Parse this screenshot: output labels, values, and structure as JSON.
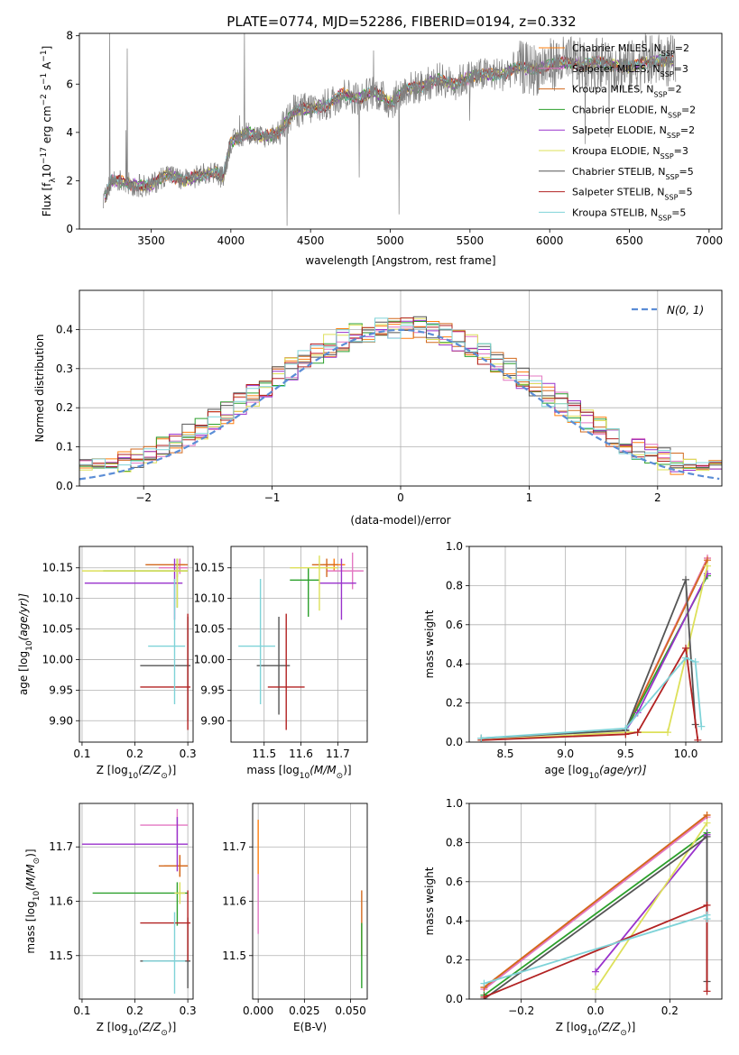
{
  "figure": {
    "title": "PLATE=0774, MJD=52286, FIBERID=0194, z=0.332",
    "legend_labels": [
      "Chabrier MILES, N",
      "Salpeter MILES, N",
      "Kroupa MILES, N",
      "Chabrier ELODIE, N",
      "Salpeter ELODIE, N",
      "Kroupa ELODIE, N",
      "Chabrier STELIB, N",
      "Salpeter STELIB, N",
      "Kroupa STELIB, N"
    ],
    "legend_subscript": "SSP",
    "legend_nssp": [
      "=2",
      "=3",
      "=2",
      "=2",
      "=2",
      "=3",
      "=5",
      "=5",
      "=5"
    ],
    "model_colors": [
      "#ff7f0e",
      "#e377c2",
      "#d2691e",
      "#2ca02c",
      "#9932cc",
      "#dde05a",
      "#555555",
      "#b22222",
      "#7fd3d8"
    ]
  },
  "chart_data": [
    {
      "id": "spectrum",
      "type": "line",
      "title": "PLATE=0774, MJD=52286, FIBERID=0194, z=0.332",
      "xlabel": "wavelength [Angstrom, rest frame]",
      "ylabel": "Flux [f",
      "ylabel_parts": [
        "Flux [f",
        "λ",
        "10",
        "−17",
        " erg cm",
        "−2",
        " s",
        "−1",
        " A",
        "−1",
        "]"
      ],
      "xlim": [
        3050,
        7080
      ],
      "ylim": [
        0,
        8.1
      ],
      "xticks": [
        3500,
        4000,
        4500,
        5000,
        5500,
        6000,
        6500,
        7000
      ],
      "yticks": [
        0,
        2,
        4,
        6,
        8
      ],
      "data_color": "#808080",
      "continuum": {
        "x": [
          3200,
          3250,
          3300,
          3400,
          3500,
          3600,
          3700,
          3800,
          3900,
          3950,
          4000,
          4100,
          4200,
          4300,
          4400,
          4500,
          4600,
          4700,
          4800,
          4900,
          5000,
          5100,
          5200,
          5300,
          5400,
          5500,
          5600,
          5700,
          5800,
          5900,
          6000,
          6100,
          6200,
          6300,
          6400,
          6500,
          6600,
          6700,
          6800
        ],
        "y": [
          1.0,
          2.0,
          2.0,
          1.8,
          1.8,
          2.3,
          2.0,
          2.2,
          2.4,
          2.1,
          3.6,
          4.0,
          3.8,
          4.0,
          4.9,
          5.0,
          5.1,
          5.6,
          5.4,
          5.7,
          5.2,
          5.8,
          5.9,
          6.2,
          6.0,
          6.3,
          6.4,
          6.4,
          6.7,
          6.6,
          6.8,
          6.9,
          6.8,
          6.9,
          6.8,
          6.7,
          6.9,
          7.0,
          6.9
        ]
      }
    },
    {
      "id": "residuals",
      "type": "step",
      "xlabel": "(data-model)/error",
      "ylabel": "Normed distribution",
      "xlim": [
        -2.5,
        2.5
      ],
      "ylim": [
        0,
        0.5
      ],
      "xticks": [
        -2,
        -1,
        0,
        1,
        2
      ],
      "yticks": [
        0.0,
        0.1,
        0.2,
        0.3,
        0.4
      ],
      "grid": true,
      "legend": "N(0, 1)",
      "bin_width": 0.1,
      "gaussian": {
        "mean": 0,
        "sigma": 1,
        "color": "#5b8dd6"
      }
    },
    {
      "id": "age_vs_Z",
      "type": "errorbar",
      "xlabel": "Z [log",
      "xlabel_parts": [
        "Z [log",
        "10",
        "(Z/Z",
        "⊙",
        ")]"
      ],
      "ylabel_parts": [
        "age  [log",
        "10",
        "(age/yr)]"
      ],
      "xlim": [
        0.095,
        0.31
      ],
      "ylim": [
        9.865,
        10.185
      ],
      "xticks": [
        0.1,
        0.2,
        0.3
      ],
      "yticks": [
        9.9,
        9.95,
        10.0,
        10.05,
        10.1,
        10.15
      ],
      "grid": true,
      "points": [
        {
          "x": 0.285,
          "xerr": [
            0.01,
            0.01
          ],
          "y": 10.155,
          "yerr": [
            0.01,
            0.01
          ]
        },
        {
          "x": 0.285,
          "xerr": [
            0.04,
            0.015
          ],
          "y": 10.15,
          "yerr": [
            0.01,
            0.015
          ]
        },
        {
          "x": 0.28,
          "xerr": [
            0.06,
            0.02
          ],
          "y": 10.155,
          "yerr": [
            0.02,
            0.01
          ]
        },
        {
          "x": 0.28,
          "xerr": [
            0.14,
            0.02
          ],
          "y": 10.145,
          "yerr": [
            0.06,
            0.02
          ]
        },
        {
          "x": 0.275,
          "xerr": [
            0.17,
            0.015
          ],
          "y": 10.125,
          "yerr": [
            0.06,
            0.04
          ]
        },
        {
          "x": 0.28,
          "xerr": [
            0.18,
            0.02
          ],
          "y": 10.145,
          "yerr": [
            0.06,
            0.02
          ]
        },
        {
          "x": 0.3,
          "xerr": [
            0.09,
            0.005
          ],
          "y": 9.99,
          "yerr": [
            0.09,
            0.08
          ]
        },
        {
          "x": 0.3,
          "xerr": [
            0.09,
            0.005
          ],
          "y": 9.955,
          "yerr": [
            0.07,
            0.12
          ]
        },
        {
          "x": 0.275,
          "xerr": [
            0.05,
            0.02
          ],
          "y": 10.022,
          "yerr": [
            0.095,
            0.11
          ]
        }
      ]
    },
    {
      "id": "age_vs_mass",
      "type": "errorbar",
      "xlabel_parts": [
        "mass [log",
        "10",
        "(M/M",
        "⊙",
        ")]"
      ],
      "xlim": [
        11.41,
        11.78
      ],
      "ylim": [
        9.865,
        10.185
      ],
      "xticks": [
        11.5,
        11.6,
        11.7
      ],
      "yticks": [
        9.9,
        9.95,
        10.0,
        10.05,
        10.1,
        10.15
      ],
      "grid": true,
      "points": [
        {
          "x": 11.69,
          "xerr": [
            0.03,
            0.03
          ],
          "y": 10.155,
          "yerr": [
            0.01,
            0.01
          ]
        },
        {
          "x": 11.74,
          "xerr": [
            0.07,
            0.03
          ],
          "y": 10.145,
          "yerr": [
            0.03,
            0.03
          ]
        },
        {
          "x": 11.67,
          "xerr": [
            0.04,
            0.03
          ],
          "y": 10.155,
          "yerr": [
            0.02,
            0.01
          ]
        },
        {
          "x": 11.62,
          "xerr": [
            0.05,
            0.03
          ],
          "y": 10.13,
          "yerr": [
            0.06,
            0.02
          ]
        },
        {
          "x": 11.71,
          "xerr": [
            0.06,
            0.04
          ],
          "y": 10.125,
          "yerr": [
            0.06,
            0.04
          ]
        },
        {
          "x": 11.65,
          "xerr": [
            0.08,
            0.05
          ],
          "y": 10.15,
          "yerr": [
            0.07,
            0.02
          ]
        },
        {
          "x": 11.54,
          "xerr": [
            0.06,
            0.03
          ],
          "y": 9.99,
          "yerr": [
            0.08,
            0.08
          ]
        },
        {
          "x": 11.56,
          "xerr": [
            0.05,
            0.05
          ],
          "y": 9.955,
          "yerr": [
            0.07,
            0.12
          ]
        },
        {
          "x": 11.49,
          "xerr": [
            0.06,
            0.04
          ],
          "y": 10.022,
          "yerr": [
            0.095,
            0.11
          ]
        }
      ]
    },
    {
      "id": "weight_vs_age",
      "type": "line",
      "xlabel_parts": [
        "age  [log",
        "10",
        "(age/yr)]"
      ],
      "ylabel": "mass weight",
      "xlim": [
        8.2,
        10.3
      ],
      "ylim": [
        0,
        1.0
      ],
      "xticks": [
        8.5,
        9.0,
        9.5,
        10.0
      ],
      "yticks": [
        0.0,
        0.2,
        0.4,
        0.6,
        0.8,
        1.0
      ],
      "grid": true,
      "series": [
        {
          "x": [
            9.5,
            10.18
          ],
          "y": [
            0.06,
            0.94
          ]
        },
        {
          "x": [
            9.5,
            10.18
          ],
          "y": [
            0.06,
            0.94
          ]
        },
        {
          "x": [
            9.5,
            10.18
          ],
          "y": [
            0.06,
            0.93
          ]
        },
        {
          "x": [
            9.5,
            10.18
          ],
          "y": [
            0.06,
            0.85
          ]
        },
        {
          "x": [
            9.5,
            9.6,
            10.18
          ],
          "y": [
            0.06,
            0.15,
            0.86
          ]
        },
        {
          "x": [
            8.3,
            9.5,
            9.85,
            10.18
          ],
          "y": [
            0.01,
            0.05,
            0.05,
            0.9
          ]
        },
        {
          "x": [
            8.3,
            9.5,
            10.0,
            10.08
          ],
          "y": [
            0.02,
            0.06,
            0.83,
            0.09
          ]
        },
        {
          "x": [
            8.3,
            9.5,
            9.6,
            10.0,
            10.1
          ],
          "y": [
            0.01,
            0.04,
            0.05,
            0.48,
            0.01
          ]
        },
        {
          "x": [
            8.3,
            9.5,
            10.0,
            10.08,
            10.13
          ],
          "y": [
            0.02,
            0.07,
            0.43,
            0.41,
            0.08
          ]
        }
      ]
    },
    {
      "id": "mass_vs_Z",
      "type": "errorbar",
      "xlabel_parts": [
        "Z [log",
        "10",
        "(Z/Z",
        "⊙",
        ")]"
      ],
      "ylabel_parts": [
        "mass [log",
        "10",
        "(M/M",
        "⊙",
        ")]"
      ],
      "xlim": [
        0.095,
        0.31
      ],
      "ylim": [
        11.42,
        11.78
      ],
      "xticks": [
        0.1,
        0.2,
        0.3
      ],
      "yticks": [
        11.5,
        11.6,
        11.7
      ],
      "grid": true,
      "points": [
        {
          "x": 0.285,
          "xerr": [
            0.03,
            0.015
          ],
          "y": 11.665,
          "yerr": [
            0.02,
            0.02
          ]
        },
        {
          "x": 0.28,
          "xerr": [
            0.07,
            0.02
          ],
          "y": 11.74,
          "yerr": [
            0.03,
            0.03
          ]
        },
        {
          "x": 0.285,
          "xerr": [
            0.04,
            0.015
          ],
          "y": 11.665,
          "yerr": [
            0.02,
            0.02
          ]
        },
        {
          "x": 0.28,
          "xerr": [
            0.16,
            0.02
          ],
          "y": 11.615,
          "yerr": [
            0.06,
            0.02
          ]
        },
        {
          "x": 0.28,
          "xerr": [
            0.18,
            0.02
          ],
          "y": 11.705,
          "yerr": [
            0.05,
            0.05
          ]
        },
        {
          "x": 0.285,
          "xerr": [
            0.01,
            0.01
          ],
          "y": 11.615,
          "yerr": [
            0.02,
            0.02
          ]
        },
        {
          "x": 0.3,
          "xerr": [
            0.09,
            0.005
          ],
          "y": 11.49,
          "yerr": [
            0.05,
            0.08
          ]
        },
        {
          "x": 0.3,
          "xerr": [
            0.09,
            0.005
          ],
          "y": 11.56,
          "yerr": [
            0.07,
            0.06
          ]
        },
        {
          "x": 0.275,
          "xerr": [
            0.06,
            0.02
          ],
          "y": 11.49,
          "yerr": [
            0.06,
            0.09
          ]
        }
      ]
    },
    {
      "id": "mass_vs_EBV",
      "type": "errorbar",
      "xlabel": "E(B-V)",
      "xlim": [
        -0.003,
        0.059
      ],
      "ylim": [
        11.42,
        11.78
      ],
      "xticks": [
        0.0,
        0.025,
        0.05
      ],
      "xtick_labels": [
        "0.000",
        "0.025",
        "0.050"
      ],
      "yticks": [
        11.5,
        11.6,
        11.7
      ],
      "grid": true,
      "points": [
        {
          "x": 0.0,
          "y": 11.7,
          "yerr": [
            0.05,
            0.05
          ]
        },
        {
          "x": 0.0,
          "y": 11.6,
          "yerr": [
            0.06,
            0.05
          ]
        },
        {
          "x": 0.056,
          "y": 11.56,
          "yerr": [
            0.06,
            0.06
          ]
        },
        {
          "x": 0.056,
          "y": 11.5,
          "yerr": [
            0.06,
            0.06
          ]
        }
      ]
    },
    {
      "id": "weight_vs_Z",
      "type": "line",
      "xlabel_parts": [
        "Z [log",
        "10",
        "(Z/Z",
        "⊙",
        ")]"
      ],
      "ylabel": "mass weight",
      "xlim": [
        -0.34,
        0.34
      ],
      "ylim": [
        0,
        1.0
      ],
      "xticks": [
        -0.2,
        0.0,
        0.2
      ],
      "yticks": [
        0.0,
        0.2,
        0.4,
        0.6,
        0.8,
        1.0
      ],
      "grid": true,
      "series": [
        {
          "x": [
            -0.3,
            0.3
          ],
          "y": [
            0.06,
            0.94
          ]
        },
        {
          "x": [
            -0.3,
            0.3
          ],
          "y": [
            0.05,
            0.93
          ]
        },
        {
          "x": [
            -0.3,
            0.3
          ],
          "y": [
            0.06,
            0.94
          ]
        },
        {
          "x": [
            -0.3,
            0.3
          ],
          "y": [
            0.02,
            0.85
          ]
        },
        {
          "x": [
            0.0,
            0.3
          ],
          "y": [
            0.14,
            0.84
          ]
        },
        {
          "x": [
            0.0,
            0.3
          ],
          "y": [
            0.05,
            0.9
          ]
        },
        {
          "x": [
            -0.3,
            0.3,
            0.3
          ],
          "y": [
            0.0,
            0.83,
            0.09
          ]
        },
        {
          "x": [
            -0.3,
            0.3,
            0.3
          ],
          "y": [
            0.01,
            0.48,
            0.04
          ]
        },
        {
          "x": [
            -0.3,
            0.3,
            0.3
          ],
          "y": [
            0.08,
            0.43,
            0.41
          ]
        }
      ]
    }
  ]
}
